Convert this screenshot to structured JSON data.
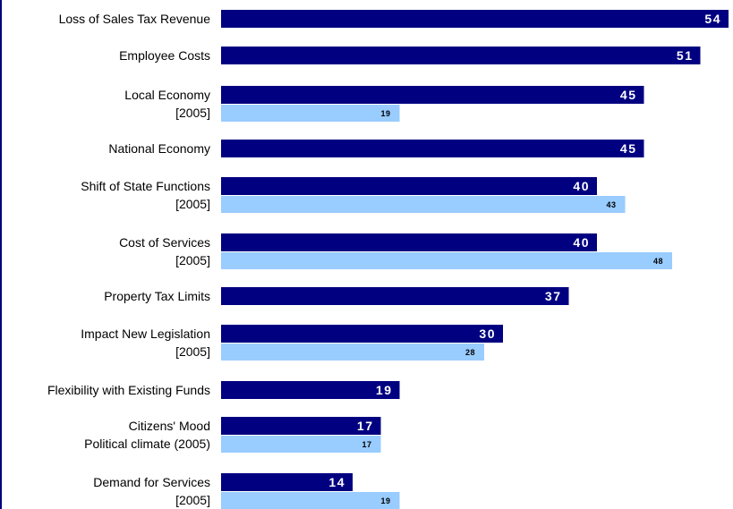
{
  "chart_data": {
    "type": "bar",
    "orientation": "horizontal",
    "title": "",
    "xlabel": "",
    "ylabel": "",
    "xlim": [
      0,
      54
    ],
    "grid": false,
    "legend": "none",
    "colors": {
      "primary": "#000080",
      "comparison_2005": "#99ccff"
    },
    "categories": [
      {
        "label": "Loss of Sales Tax Revenue",
        "value": 54,
        "sub_label": "",
        "value_2005": null
      },
      {
        "label": "Employee Costs",
        "value": 51,
        "sub_label": "",
        "value_2005": null
      },
      {
        "label": "Local Economy",
        "value": 45,
        "sub_label": "[2005]",
        "value_2005": 19
      },
      {
        "label": "National Economy",
        "value": 45,
        "sub_label": "",
        "value_2005": null
      },
      {
        "label": "Shift of State Functions",
        "value": 40,
        "sub_label": "[2005]",
        "value_2005": 43
      },
      {
        "label": "Cost of Services",
        "value": 40,
        "sub_label": "[2005]",
        "value_2005": 48
      },
      {
        "label": "Property Tax Limits",
        "value": 37,
        "sub_label": "",
        "value_2005": null
      },
      {
        "label": "Impact New Legislation",
        "value": 30,
        "sub_label": "[2005]",
        "value_2005": 28
      },
      {
        "label": "Flexibility with Existing Funds",
        "value": 19,
        "sub_label": "",
        "value_2005": null
      },
      {
        "label": "Citizens' Mood",
        "value": 17,
        "sub_label": "Political climate (2005)",
        "value_2005": 17
      },
      {
        "label": "Demand for Services",
        "value": 14,
        "sub_label": "[2005]",
        "value_2005": 19
      }
    ]
  }
}
